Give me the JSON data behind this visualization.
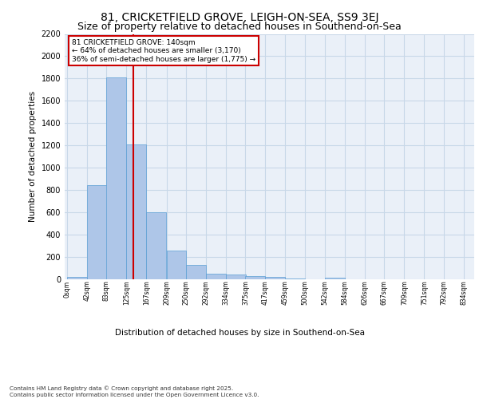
{
  "title1": "81, CRICKETFIELD GROVE, LEIGH-ON-SEA, SS9 3EJ",
  "title2": "Size of property relative to detached houses in Southend-on-Sea",
  "xlabel": "Distribution of detached houses by size in Southend-on-Sea",
  "ylabel": "Number of detached properties",
  "bar_left_edges": [
    0,
    42,
    83,
    125,
    167,
    209,
    250,
    292,
    334,
    375,
    417,
    459,
    500,
    542,
    584,
    626,
    667,
    709,
    751,
    792
  ],
  "bar_width": 41.5,
  "bar_heights": [
    25,
    845,
    1810,
    1210,
    600,
    255,
    130,
    50,
    40,
    30,
    20,
    5,
    0,
    15,
    0,
    0,
    0,
    0,
    0,
    0
  ],
  "bar_color": "#aec6e8",
  "bar_edgecolor": "#5a9fd4",
  "vline_x": 140,
  "vline_color": "#cc0000",
  "annotation_text": "81 CRICKETFIELD GROVE: 140sqm\n← 64% of detached houses are smaller (3,170)\n36% of semi-detached houses are larger (1,775) →",
  "annotation_box_color": "#cc0000",
  "ylim": [
    0,
    2200
  ],
  "yticks": [
    0,
    200,
    400,
    600,
    800,
    1000,
    1200,
    1400,
    1600,
    1800,
    2000,
    2200
  ],
  "xtick_labels": [
    "0sqm",
    "42sqm",
    "83sqm",
    "125sqm",
    "167sqm",
    "209sqm",
    "250sqm",
    "292sqm",
    "334sqm",
    "375sqm",
    "417sqm",
    "459sqm",
    "500sqm",
    "542sqm",
    "584sqm",
    "626sqm",
    "667sqm",
    "709sqm",
    "751sqm",
    "792sqm",
    "834sqm"
  ],
  "xtick_positions": [
    0,
    42,
    83,
    125,
    167,
    209,
    250,
    292,
    334,
    375,
    417,
    459,
    500,
    542,
    584,
    626,
    667,
    709,
    751,
    792,
    834
  ],
  "grid_color": "#c8d8e8",
  "background_color": "#eaf0f8",
  "footer": "Contains HM Land Registry data © Crown copyright and database right 2025.\nContains public sector information licensed under the Open Government Licence v3.0.",
  "title1_fontsize": 10,
  "title2_fontsize": 9
}
